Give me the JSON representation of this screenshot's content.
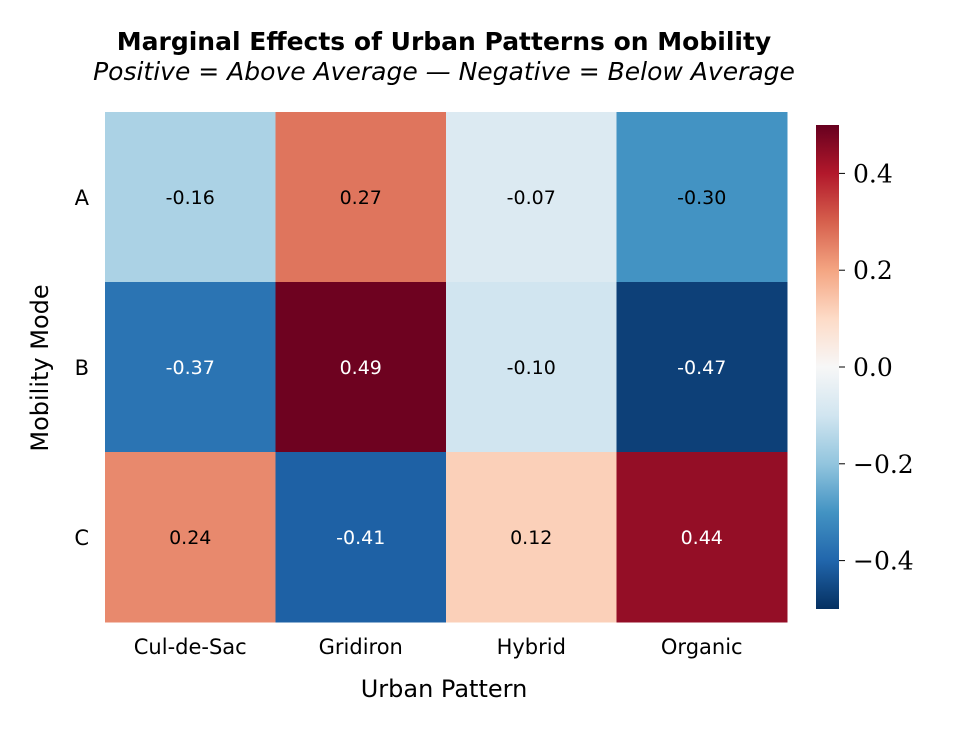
{
  "chart_data": {
    "type": "heatmap",
    "title": "Marginal Effects of Urban Patterns on Mobility",
    "subtitle": "Positive = Above Average — Negative = Below Average",
    "xlabel": "Urban Pattern",
    "ylabel": "Mobility Mode",
    "x_categories": [
      "Cul-de-Sac",
      "Gridiron",
      "Hybrid",
      "Organic"
    ],
    "y_categories": [
      "A",
      "B",
      "C"
    ],
    "values": [
      [
        -0.16,
        0.27,
        -0.07,
        -0.3
      ],
      [
        -0.37,
        0.49,
        -0.1,
        -0.47
      ],
      [
        0.24,
        -0.41,
        0.12,
        0.44
      ]
    ],
    "value_labels": [
      [
        "-0.16",
        "0.27",
        "-0.07",
        "-0.30"
      ],
      [
        "-0.37",
        "0.49",
        "-0.10",
        "-0.47"
      ],
      [
        "0.24",
        "-0.41",
        "0.12",
        "0.44"
      ]
    ],
    "colormap": "RdBu_r",
    "color_range": [
      -0.5,
      0.5
    ],
    "colorbar": {
      "ticks": [
        0.4,
        0.2,
        0.0,
        -0.2,
        -0.4
      ],
      "tick_labels": [
        "0.4",
        "0.2",
        "0.0",
        "−0.2",
        "−0.4"
      ],
      "placement": "right"
    }
  }
}
